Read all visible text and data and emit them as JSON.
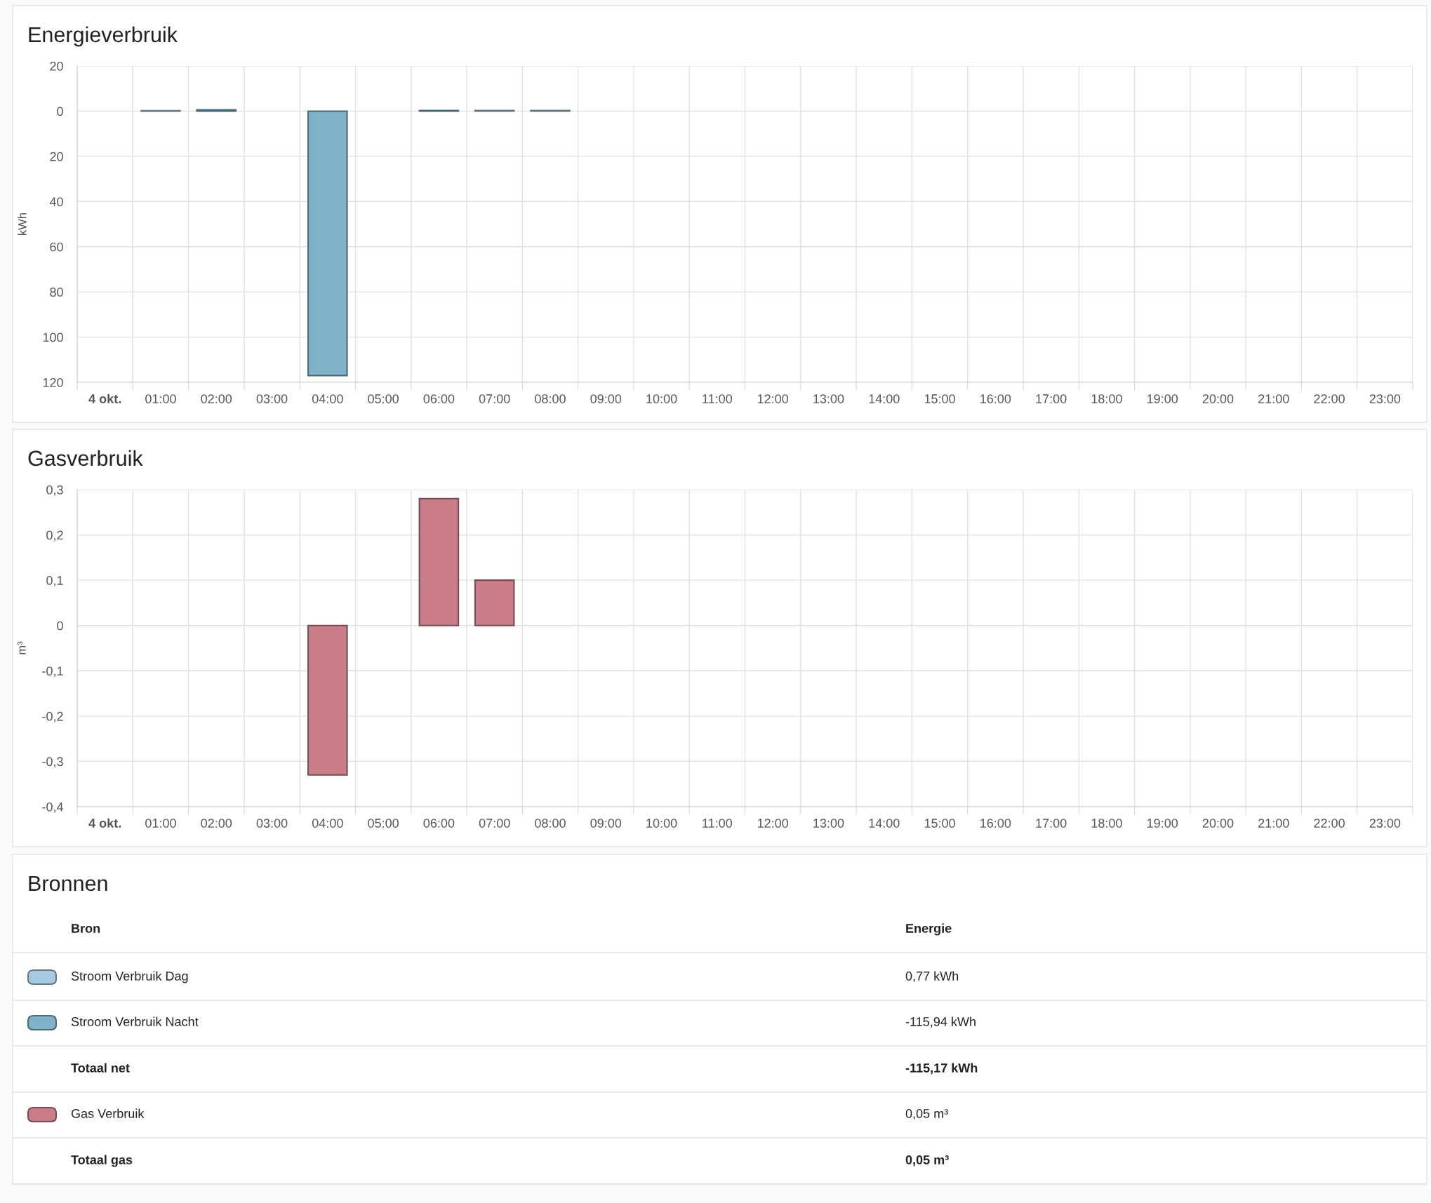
{
  "chart_data": [
    {
      "type": "bar",
      "title": "Energieverbruik",
      "ylabel": "kWh",
      "stacked": true,
      "grid": true,
      "categories": [
        "4 okt.",
        "01:00",
        "02:00",
        "03:00",
        "04:00",
        "05:00",
        "06:00",
        "07:00",
        "08:00",
        "09:00",
        "10:00",
        "11:00",
        "12:00",
        "13:00",
        "14:00",
        "15:00",
        "16:00",
        "17:00",
        "18:00",
        "19:00",
        "20:00",
        "21:00",
        "22:00",
        "23:00"
      ],
      "series": [
        {
          "color": "#a6c8e0",
          "values": [
            null,
            0.2,
            null,
            null,
            null,
            null,
            null,
            0.3,
            0.3,
            null,
            null,
            null,
            null,
            null,
            null,
            null,
            null,
            null,
            null,
            null,
            null,
            null,
            null,
            null
          ]
        },
        {
          "color": "#7fb1c9",
          "values": [
            null,
            null,
            0.6,
            null,
            -117,
            null,
            0.3,
            null,
            null,
            null,
            null,
            null,
            null,
            null,
            null,
            null,
            null,
            null,
            null,
            null,
            null,
            null,
            null,
            null
          ]
        }
      ],
      "ylim": [
        -120,
        20
      ],
      "yticks": [
        20,
        0,
        {
          "value": -20,
          "label": "20"
        },
        {
          "value": -40,
          "label": "40"
        },
        {
          "value": -60,
          "label": "60"
        },
        {
          "value": -80,
          "label": "80"
        },
        {
          "value": -100,
          "label": "100"
        },
        {
          "value": -120,
          "label": "120"
        }
      ]
    },
    {
      "type": "bar",
      "title": "Gasverbruik",
      "ylabel": "m³",
      "grid": true,
      "categories": [
        "4 okt.",
        "01:00",
        "02:00",
        "03:00",
        "04:00",
        "05:00",
        "06:00",
        "07:00",
        "08:00",
        "09:00",
        "10:00",
        "11:00",
        "12:00",
        "13:00",
        "14:00",
        "15:00",
        "16:00",
        "17:00",
        "18:00",
        "19:00",
        "20:00",
        "21:00",
        "22:00",
        "23:00"
      ],
      "series": [
        {
          "color": "#c97d89",
          "values": [
            null,
            null,
            null,
            null,
            -0.33,
            null,
            0.28,
            0.1,
            null,
            null,
            null,
            null,
            null,
            null,
            null,
            null,
            null,
            null,
            null,
            null,
            null,
            null,
            null,
            null
          ]
        }
      ],
      "ylim": [
        -0.4,
        0.3
      ],
      "yticks": [
        {
          "value": 0.3,
          "label": "0,3"
        },
        {
          "value": 0.2,
          "label": "0,2"
        },
        {
          "value": 0.1,
          "label": "0,1"
        },
        0,
        {
          "value": -0.1,
          "label": "-0,1"
        },
        {
          "value": -0.2,
          "label": "-0,2"
        },
        {
          "value": -0.3,
          "label": "-0,3"
        },
        {
          "value": -0.4,
          "label": "-0,4"
        }
      ]
    },
    {
      "type": "other",
      "title": "Bronnen",
      "annotations": [
        "Bron",
        "Energie",
        "Stroom Verbruik Dag",
        "0,77 kWh",
        "Stroom Verbruik Nacht",
        "-115,94 kWh",
        "Totaal net",
        "-115,17 kWh",
        "Gas Verbruik",
        "0,05 m³",
        "Totaal gas",
        "0,05 m³"
      ],
      "colors": [
        null,
        "#a6c8e0",
        "#7fb1c9",
        null,
        "#c97d89",
        null
      ]
    }
  ]
}
